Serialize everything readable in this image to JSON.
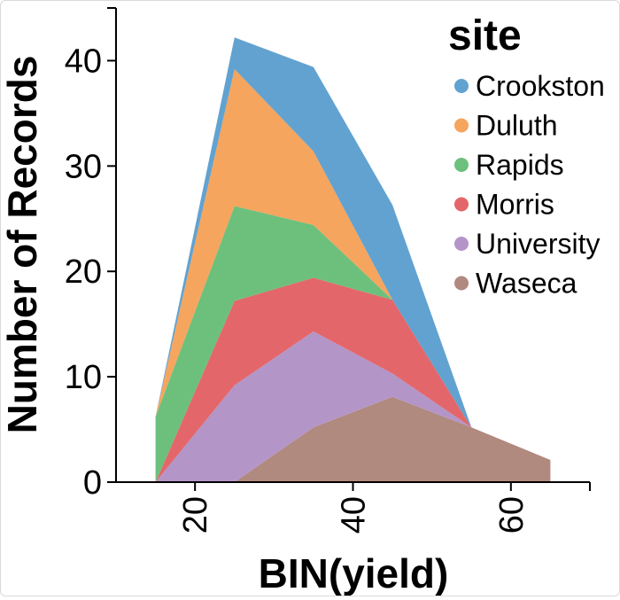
{
  "chart_data": {
    "type": "area",
    "stacked": true,
    "xlabel": "BIN(yield)",
    "ylabel": "Number of Records",
    "xlim": [
      10,
      70
    ],
    "ylim": [
      0,
      45
    ],
    "x_ticks": [
      "20",
      "40",
      "60"
    ],
    "y_ticks": [
      "0",
      "10",
      "20",
      "30",
      "40"
    ],
    "grid": false,
    "legend": {
      "title": "site",
      "position": "top-right"
    },
    "x": [
      15,
      25,
      35,
      45,
      55,
      65
    ],
    "series": [
      {
        "name": "Waseca",
        "color": "#b0897f",
        "values": [
          0,
          0,
          5.2,
          8.1,
          5.2,
          2.1
        ]
      },
      {
        "name": "University",
        "color": "#b495c8",
        "values": [
          0,
          9.2,
          9.1,
          2.2,
          0,
          0
        ]
      },
      {
        "name": "Morris",
        "color": "#e3676a",
        "values": [
          0,
          8.0,
          5.1,
          7.0,
          0,
          0
        ]
      },
      {
        "name": "Rapids",
        "color": "#6cc07c",
        "values": [
          6.2,
          9.0,
          5.0,
          0,
          0,
          0
        ]
      },
      {
        "name": "Duluth",
        "color": "#f5a55e",
        "values": [
          0,
          13.0,
          7.0,
          0,
          0,
          0
        ]
      },
      {
        "name": "Crookston",
        "color": "#62a2d0",
        "values": [
          0,
          3.0,
          8.0,
          9.0,
          0,
          0
        ]
      }
    ],
    "legend_order": [
      "Crookston",
      "Duluth",
      "Rapids",
      "Morris",
      "University",
      "Waseca"
    ]
  }
}
